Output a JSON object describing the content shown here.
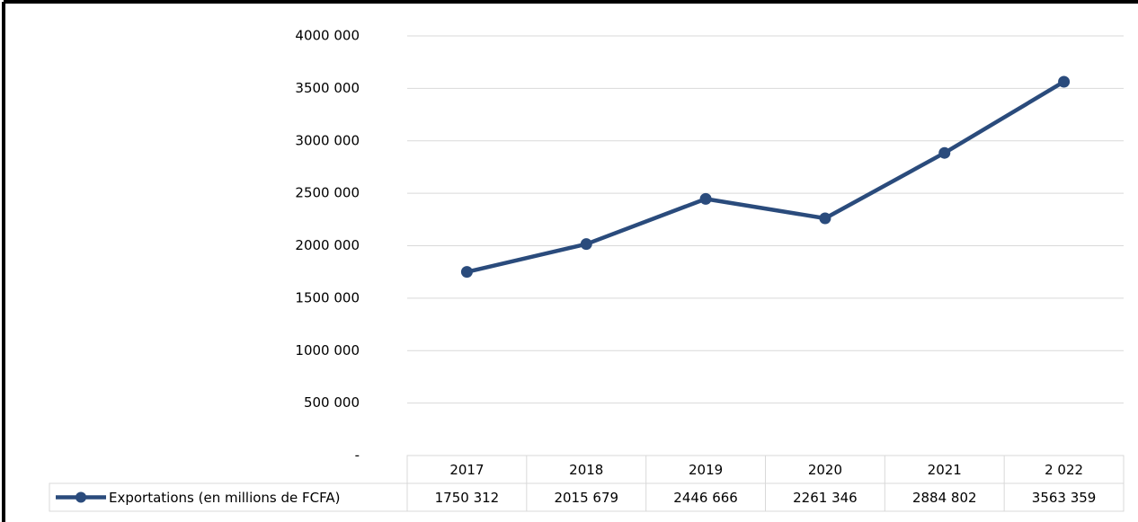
{
  "chart_data": {
    "type": "line",
    "categories": [
      "2017",
      "2018",
      "2019",
      "2020",
      "2021",
      "2 022"
    ],
    "series": [
      {
        "name": "Exportations (en millions de FCFA)",
        "color": "#2a4b7c",
        "values": [
          1750312,
          2015679,
          2446666,
          2261346,
          2884802,
          3563359
        ],
        "value_labels": [
          "1750 312",
          "2015 679",
          "2446 666",
          "2261 346",
          "2884 802",
          "3563 359"
        ]
      }
    ],
    "ylim": [
      0,
      4000000
    ],
    "yticks": [
      {
        "value": 0,
        "label": "-"
      },
      {
        "value": 500000,
        "label": "500 000"
      },
      {
        "value": 1000000,
        "label": "1000 000"
      },
      {
        "value": 1500000,
        "label": "1500 000"
      },
      {
        "value": 2000000,
        "label": "2000 000"
      },
      {
        "value": 2500000,
        "label": "2500 000"
      },
      {
        "value": 3000000,
        "label": "3000 000"
      },
      {
        "value": 3500000,
        "label": "3500 000"
      },
      {
        "value": 4000000,
        "label": "4000 000"
      }
    ],
    "grid": true
  }
}
